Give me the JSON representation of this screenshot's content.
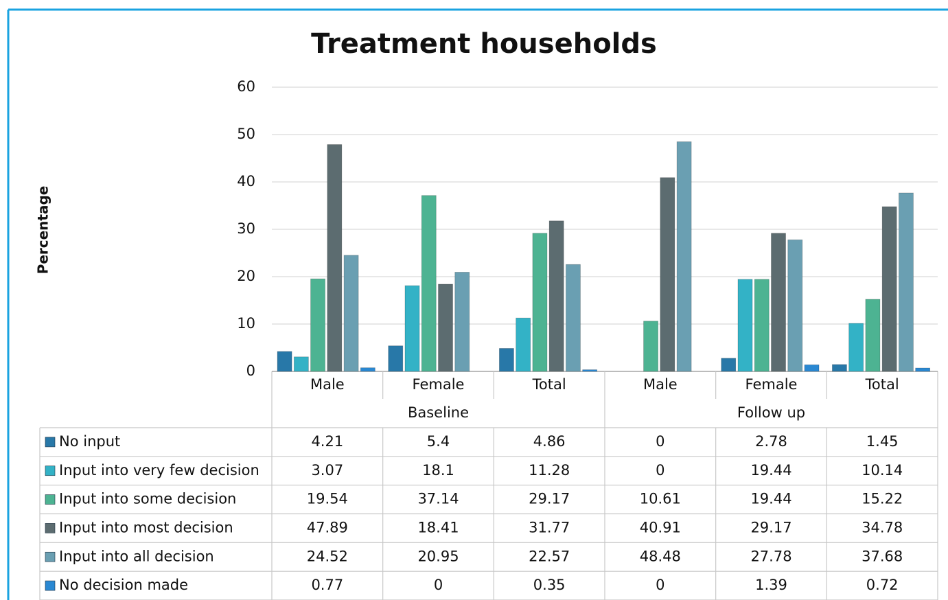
{
  "chart_data": {
    "type": "bar",
    "title": "Treatment households",
    "y_label": "Percentage",
    "groups": [
      {
        "label": "Baseline",
        "categories": [
          "Male",
          "Female",
          "Total"
        ]
      },
      {
        "label": "Follow up",
        "categories": [
          "Male",
          "Female",
          "Total"
        ]
      }
    ],
    "series": [
      {
        "name": "No input",
        "color": "#2878a8",
        "values": [
          4.21,
          5.4,
          4.86,
          0,
          2.78,
          1.45
        ]
      },
      {
        "name": "Input into very few decision",
        "color": "#33b2c6",
        "values": [
          3.07,
          18.1,
          11.28,
          0,
          19.44,
          10.14
        ]
      },
      {
        "name": "Input into some decision",
        "color": "#4db392",
        "values": [
          19.54,
          37.14,
          29.17,
          10.61,
          19.44,
          15.22
        ]
      },
      {
        "name": "Input into most decision",
        "color": "#5c6c70",
        "values": [
          47.89,
          18.41,
          31.77,
          40.91,
          29.17,
          34.78
        ]
      },
      {
        "name": "Input into all decision",
        "color": "#6a9fb2",
        "values": [
          24.52,
          20.95,
          22.57,
          48.48,
          27.78,
          37.68
        ]
      },
      {
        "name": "No decision made",
        "color": "#2a88d2",
        "values": [
          0.77,
          0,
          0.35,
          0,
          1.39,
          0.72
        ]
      }
    ],
    "ylim": [
      0,
      60
    ],
    "yticks": [
      0,
      10,
      20,
      30,
      40,
      50,
      60
    ],
    "grid": true
  }
}
